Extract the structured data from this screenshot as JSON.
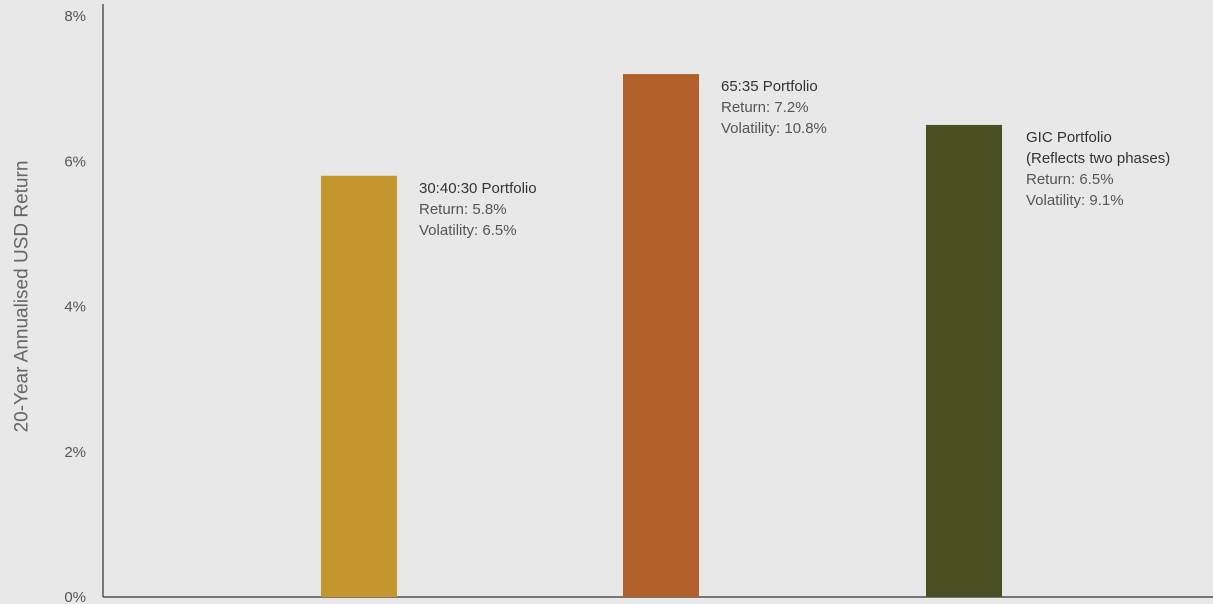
{
  "chart_data": {
    "type": "bar",
    "title": "",
    "ylabel": "20-Year Annualised USD Return",
    "ylim": [
      0,
      8
    ],
    "y_ticks": [
      0,
      2,
      4,
      6,
      8
    ],
    "y_tick_labels": [
      "0%",
      "2%",
      "4%",
      "6%",
      "8%"
    ],
    "grid": false,
    "bars": [
      {
        "value": 5.8,
        "color": "#c4962e",
        "label_lines": [
          "30:40:30 Portfolio"
        ],
        "detail_lines": [
          "Return: 5.8%",
          "Volatility: 6.5%"
        ]
      },
      {
        "value": 7.2,
        "color": "#b06028",
        "label_lines": [
          "65:35 Portfolio"
        ],
        "detail_lines": [
          "Return: 7.2%",
          "Volatility: 10.8%"
        ]
      },
      {
        "value": 6.5,
        "color": "#4a4f22",
        "label_lines": [
          "GIC Portfolio",
          "(Reflects two phases)"
        ],
        "detail_lines": [
          "Return: 6.5%",
          "Volatility: 9.1%"
        ]
      }
    ]
  }
}
